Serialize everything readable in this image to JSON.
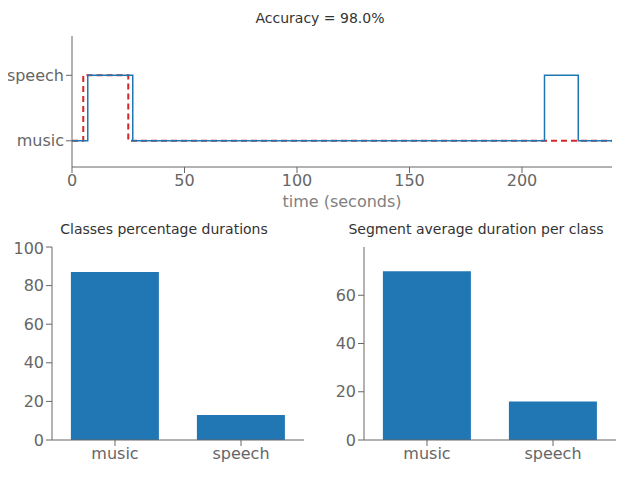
{
  "chart_data": [
    {
      "type": "step",
      "title": "Accuracy = 98.0%",
      "xlabel": "time (seconds)",
      "xlim": [
        0,
        240
      ],
      "xticks": [
        0,
        50,
        100,
        150,
        200
      ],
      "ylim": [
        -0.4,
        1.6
      ],
      "yticks": [
        {
          "value": 0,
          "label": "music"
        },
        {
          "value": 1,
          "label": "speech"
        }
      ],
      "grid": false,
      "series": [
        {
          "color": "#d62728",
          "line_style": "dashed",
          "x": [
            0,
            5,
            5,
            25,
            25,
            240
          ],
          "values": [
            0,
            0,
            1,
            1,
            0,
            0
          ]
        },
        {
          "color": "#1f77b4",
          "line_style": "solid",
          "x": [
            0,
            7,
            7,
            27,
            27,
            210,
            210,
            225,
            225,
            240
          ],
          "values": [
            0,
            0,
            1,
            1,
            0,
            0,
            1,
            1,
            0,
            0
          ]
        }
      ]
    },
    {
      "type": "bar",
      "title": "Classes percentage durations",
      "categories": [
        "music",
        "speech"
      ],
      "values": [
        87,
        13
      ],
      "color": "#2077b4",
      "ylim": [
        0,
        100
      ],
      "yticks": [
        0,
        20,
        40,
        60,
        80,
        100
      ],
      "grid": false
    },
    {
      "type": "bar",
      "title": "Segment average duration per class",
      "categories": [
        "music",
        "speech"
      ],
      "values": [
        70,
        16
      ],
      "color": "#2077b4",
      "ylim": [
        0,
        80
      ],
      "yticks": [
        0,
        20,
        40,
        60
      ],
      "grid": false
    }
  ]
}
